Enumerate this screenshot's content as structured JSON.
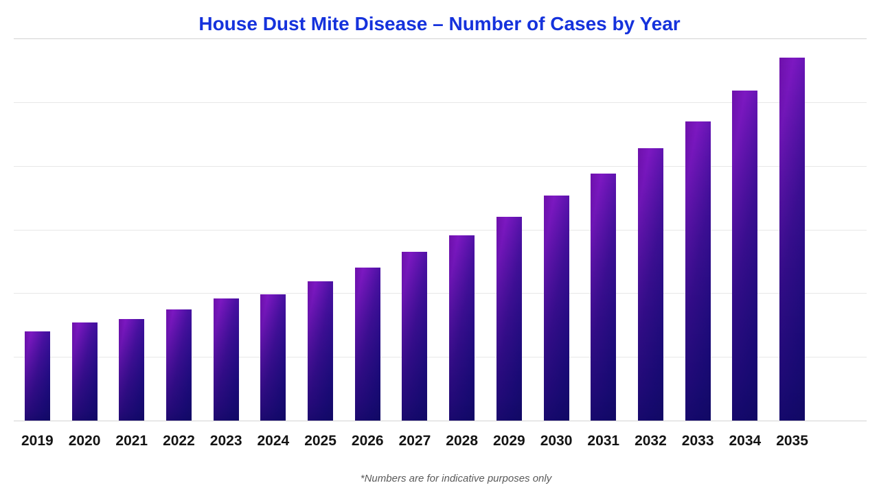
{
  "page": {
    "background_color": "#ffffff"
  },
  "colors": {
    "title": "#1532dc",
    "axis_label": "#141414",
    "footnote": "#5a5a5a",
    "gridline": "#e7e7e7",
    "frame_line": "#d2d2d2",
    "bar_top_left_purple": "#6e10ab",
    "bar_highlight_purple": "#7d18c2",
    "bar_mid_violet": "#4c11a4",
    "bar_right_indigo": "#2a0f92",
    "bar_edge_indigo": "#23107f",
    "bar_bottom_navy": "#120b6b"
  },
  "chart_data": {
    "type": "bar",
    "title": "House Dust Mite Disease – Number of Cases by Year",
    "categories": [
      "2019",
      "2020",
      "2021",
      "2022",
      "2023",
      "2024",
      "2025",
      "2026",
      "2027",
      "2028",
      "2029",
      "2030",
      "2031",
      "2032",
      "2033",
      "2034",
      "2035"
    ],
    "values": [
      140,
      154,
      159,
      174,
      192,
      198,
      219,
      240,
      265,
      291,
      320,
      353,
      388,
      428,
      470,
      518,
      570
    ],
    "xlabel": "",
    "ylabel": "",
    "ylim": [
      0,
      600
    ],
    "gridline_step": 100,
    "grid": true,
    "y_axis_tick_labels_visible": false,
    "legend": false,
    "annotation": "*Numbers are for indicative purposes only"
  }
}
